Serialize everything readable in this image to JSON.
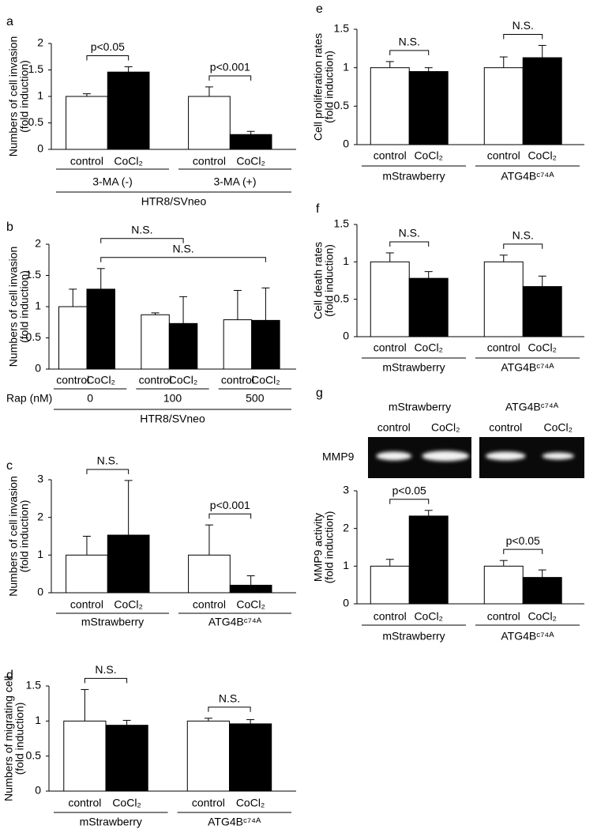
{
  "chart_data": [
    {
      "type": "bar",
      "letter": "a",
      "ylabel": [
        "Numbers of cell invasion",
        "(fold induction)"
      ],
      "categories": [
        "control",
        "CoCl₂",
        "control",
        "CoCl₂"
      ],
      "values": [
        1,
        1.46,
        1,
        0.28
      ],
      "errors": [
        0.05,
        0.1,
        0.18,
        0.06
      ],
      "colors": [
        "#ffffff",
        "#000000",
        "#ffffff",
        "#000000"
      ],
      "groups": [
        "3-MA (-)",
        "3-MA (+)"
      ],
      "footer": "HTR8/SVneo",
      "ylim": [
        0,
        2
      ],
      "yticks": [
        0,
        0.5,
        1,
        1.5,
        2
      ],
      "annotations": [
        {
          "text": "p<0.05",
          "from": 0,
          "to": 1
        },
        {
          "text": "p<0.001",
          "from": 2,
          "to": 3
        }
      ]
    },
    {
      "type": "bar",
      "letter": "b",
      "ylabel": [
        "Numbers of cell invasion",
        "(fold induction)"
      ],
      "categories": [
        "control",
        "CoCl₂",
        "control",
        "CoCl₂",
        "control",
        "CoCl₂"
      ],
      "values": [
        1,
        1.28,
        0.87,
        0.73,
        0.79,
        0.78
      ],
      "errors": [
        0.28,
        0.33,
        0.03,
        0.43,
        0.47,
        0.52
      ],
      "colors": [
        "#ffffff",
        "#000000",
        "#ffffff",
        "#000000",
        "#ffffff",
        "#000000"
      ],
      "groups": [
        "0",
        "100",
        "500"
      ],
      "row_label": "Rap (nM)",
      "footer": "HTR8/SVneo",
      "ylim": [
        0,
        2
      ],
      "yticks": [
        0,
        0.5,
        1,
        1.5,
        2
      ],
      "annotations": [
        {
          "text": "N.S.",
          "from": 1,
          "to": 3
        },
        {
          "text": "N.S.",
          "from": 1,
          "to": 5
        }
      ]
    },
    {
      "type": "bar",
      "letter": "c",
      "ylabel": [
        "Numbers of cell invasion",
        "(fold induction)"
      ],
      "categories": [
        "control",
        "CoCl₂",
        "control",
        "CoCl₂"
      ],
      "values": [
        1,
        1.53,
        1,
        0.2
      ],
      "errors": [
        0.5,
        1.45,
        0.8,
        0.25
      ],
      "colors": [
        "#ffffff",
        "#000000",
        "#ffffff",
        "#000000"
      ],
      "groups": [
        "mStrawberry",
        "ATG4Bᶜ⁷⁴ᴬ"
      ],
      "ylim": [
        0,
        3
      ],
      "yticks": [
        0,
        1,
        2,
        3
      ],
      "annotations": [
        {
          "text": "N.S.",
          "from": 0,
          "to": 1
        },
        {
          "text": "p<0.001",
          "from": 2,
          "to": 3
        }
      ]
    },
    {
      "type": "bar",
      "letter": "d",
      "ylabel": [
        "Numbers of migrating cell",
        "(fold induction)"
      ],
      "categories": [
        "control",
        "CoCl₂",
        "control",
        "CoCl₂"
      ],
      "values": [
        1,
        0.94,
        1,
        0.96
      ],
      "errors": [
        0.45,
        0.07,
        0.04,
        0.06
      ],
      "colors": [
        "#ffffff",
        "#000000",
        "#ffffff",
        "#000000"
      ],
      "groups": [
        "mStrawberry",
        "ATG4Bᶜ⁷⁴ᴬ"
      ],
      "ylim": [
        0,
        1.5
      ],
      "yticks": [
        0,
        0.5,
        1,
        1.5
      ],
      "annotations": [
        {
          "text": "N.S.",
          "from": 0,
          "to": 1
        },
        {
          "text": "N.S.",
          "from": 2,
          "to": 3
        }
      ]
    },
    {
      "type": "bar",
      "letter": "e",
      "ylabel": [
        "Cell proliferation rates",
        "(fold induction)"
      ],
      "categories": [
        "control",
        "CoCl₂",
        "control",
        "CoCl₂"
      ],
      "values": [
        1,
        0.95,
        1,
        1.13
      ],
      "errors": [
        0.08,
        0.05,
        0.14,
        0.16
      ],
      "colors": [
        "#ffffff",
        "#000000",
        "#ffffff",
        "#000000"
      ],
      "groups": [
        "mStrawberry",
        "ATG4Bᶜ⁷⁴ᴬ"
      ],
      "ylim": [
        0,
        1.5
      ],
      "yticks": [
        0,
        0.5,
        1,
        1.5
      ],
      "annotations": [
        {
          "text": "N.S.",
          "from": 0,
          "to": 1
        },
        {
          "text": "N.S.",
          "from": 2,
          "to": 3
        }
      ]
    },
    {
      "type": "bar",
      "letter": "f",
      "ylabel": [
        "Cell death rates",
        "(fold induction)"
      ],
      "categories": [
        "control",
        "CoCl₂",
        "control",
        "CoCl₂"
      ],
      "values": [
        1,
        0.78,
        1,
        0.67
      ],
      "errors": [
        0.12,
        0.09,
        0.09,
        0.14
      ],
      "colors": [
        "#ffffff",
        "#000000",
        "#ffffff",
        "#000000"
      ],
      "groups": [
        "mStrawberry",
        "ATG4Bᶜ⁷⁴ᴬ"
      ],
      "ylim": [
        0,
        1.5
      ],
      "yticks": [
        0,
        0.5,
        1,
        1.5
      ],
      "annotations": [
        {
          "text": "N.S.",
          "from": 0,
          "to": 1
        },
        {
          "text": "N.S.",
          "from": 2,
          "to": 3
        }
      ]
    },
    {
      "type": "bar",
      "letter": "g",
      "ylabel": [
        "MMP9 activity",
        "(fold induction)"
      ],
      "categories": [
        "control",
        "CoCl₂",
        "control",
        "CoCl₂"
      ],
      "values": [
        1,
        2.33,
        1,
        0.7
      ],
      "errors": [
        0.18,
        0.15,
        0.15,
        0.2
      ],
      "colors": [
        "#ffffff",
        "#000000",
        "#ffffff",
        "#000000"
      ],
      "groups": [
        "mStrawberry",
        "ATG4Bᶜ⁷⁴ᴬ"
      ],
      "ylim": [
        0,
        3
      ],
      "yticks": [
        0,
        1,
        2,
        3
      ],
      "annotations": [
        {
          "text": "p<0.05",
          "from": 0,
          "to": 1
        },
        {
          "text": "p<0.05",
          "from": 2,
          "to": 3
        }
      ],
      "gel": {
        "label": "MMP9",
        "groups": [
          "mStrawberry",
          "ATG4Bᶜ⁷⁴ᴬ"
        ],
        "lanes": [
          "control",
          "CoCl₂",
          "control",
          "CoCl₂"
        ]
      }
    }
  ]
}
